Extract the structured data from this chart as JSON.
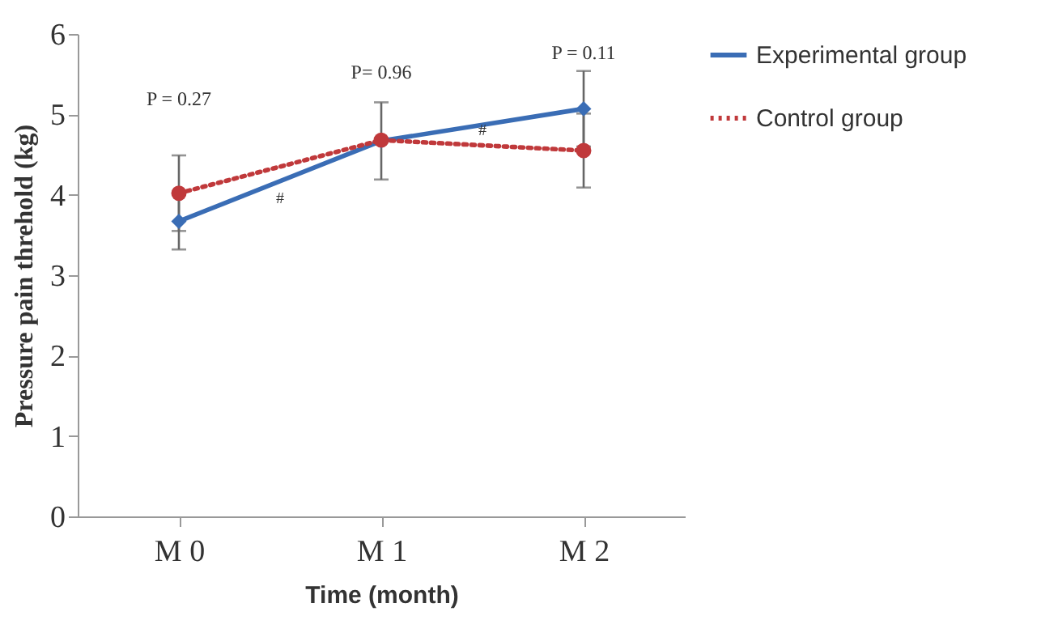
{
  "chart_data": {
    "type": "line",
    "xlabel": "Time (month)",
    "ylabel": "Pressure pain threhold (kg)",
    "categories": [
      "M 0",
      "M 1",
      "M 2"
    ],
    "series": [
      {
        "name": "Experimental group",
        "color": "#3a6db5",
        "values": [
          3.67,
          4.67,
          5.07
        ],
        "errors": [
          0.35,
          0.48,
          0.47
        ],
        "line_style": "solid",
        "marker": "diamond"
      },
      {
        "name": "Control group",
        "color": "#c0393b",
        "values": [
          4.02,
          4.68,
          4.55
        ],
        "errors": [
          0.47,
          null,
          0.46
        ],
        "line_style": "dotted",
        "marker": "circle"
      }
    ],
    "ylim": [
      0,
      6
    ],
    "yticks": [
      0,
      1,
      2,
      3,
      4,
      5,
      6
    ],
    "grid": false,
    "legend": "right",
    "annotations": [
      "P = 0.27",
      "P= 0.96",
      "P = 0.11",
      "#",
      "#"
    ]
  }
}
